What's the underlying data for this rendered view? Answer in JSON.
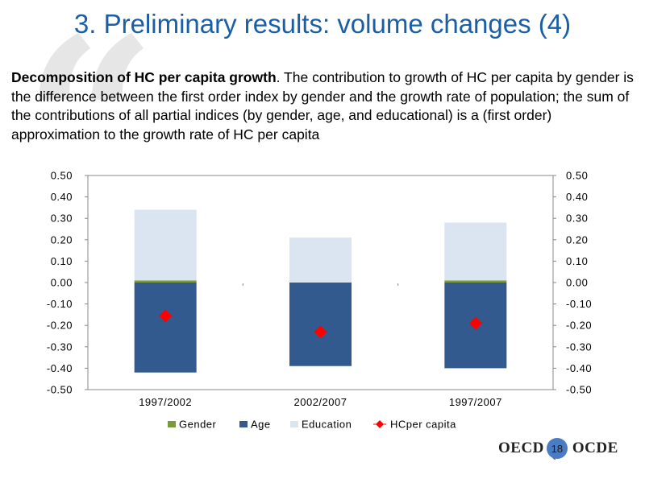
{
  "slide": {
    "title": "3. Preliminary results: volume changes (4)",
    "description_bold": "Decomposition of HC per capita growth",
    "description_rest": ". The contribution to growth of HC per capita by gender is the difference between the first order index by gender and the growth rate of population; the sum of the contributions of all partial indices (by gender, age, and educational) is a (first order) approximation to the growth rate of HC per capita"
  },
  "footer": {
    "logo_left": "OECD",
    "page_number": "18",
    "logo_right": "OCDE"
  },
  "chart_data": {
    "type": "bar",
    "stacked": true,
    "categories": [
      "1997/2002",
      "2002/2007",
      "1997/2007"
    ],
    "series": [
      {
        "name": "Gender",
        "kind": "bar",
        "color": "#7a9a3c",
        "values": [
          0.01,
          0.0,
          0.01
        ]
      },
      {
        "name": "Age",
        "kind": "bar",
        "color": "#335a8e",
        "values": [
          -0.42,
          -0.39,
          -0.4
        ]
      },
      {
        "name": "Education",
        "kind": "bar",
        "color": "#dbe5f1",
        "values": [
          0.33,
          0.21,
          0.27
        ]
      },
      {
        "name": "HCper capita",
        "kind": "marker",
        "color": "#ff0000",
        "values": [
          -0.155,
          -0.23,
          -0.19
        ]
      }
    ],
    "ylim": [
      -0.5,
      0.5
    ],
    "yticks": [
      "0.50",
      "0.40",
      "0.30",
      "0.20",
      "0.10",
      "0.00",
      "-0.10",
      "-0.20",
      "-0.30",
      "-0.40",
      "-0.50"
    ],
    "ytick_values": [
      0.5,
      0.4,
      0.3,
      0.2,
      0.1,
      0.0,
      -0.1,
      -0.2,
      -0.3,
      -0.4,
      -0.5
    ],
    "secondary_yaxis": true,
    "grid": false,
    "legend_position": "bottom"
  }
}
